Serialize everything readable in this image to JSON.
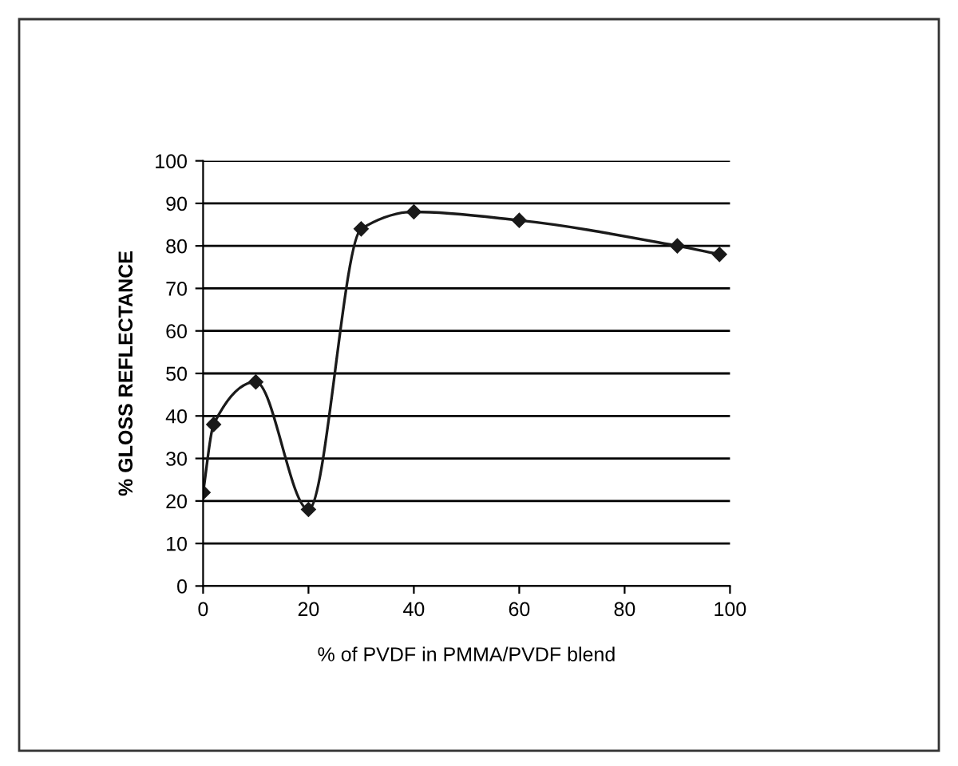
{
  "chart_data": {
    "type": "line",
    "xlabel": "% of PVDF in PMMA/PVDF blend",
    "ylabel": "% GLOSS REFLECTANCE",
    "x": [
      0,
      2,
      10,
      20,
      30,
      40,
      60,
      90,
      98
    ],
    "series": [
      {
        "color": "#1a1a1a",
        "values": [
          22,
          38,
          48,
          18,
          84,
          88,
          86,
          80,
          78
        ]
      }
    ],
    "xlim": [
      0,
      100
    ],
    "xticks": [
      0,
      20,
      40,
      60,
      80,
      100
    ],
    "ylim": [
      0,
      100
    ],
    "yticks": [
      0,
      10,
      20,
      30,
      40,
      50,
      60,
      70,
      80,
      90,
      100
    ],
    "grid": "y",
    "marker": "diamond",
    "line_style": "solid",
    "legend": false
  }
}
